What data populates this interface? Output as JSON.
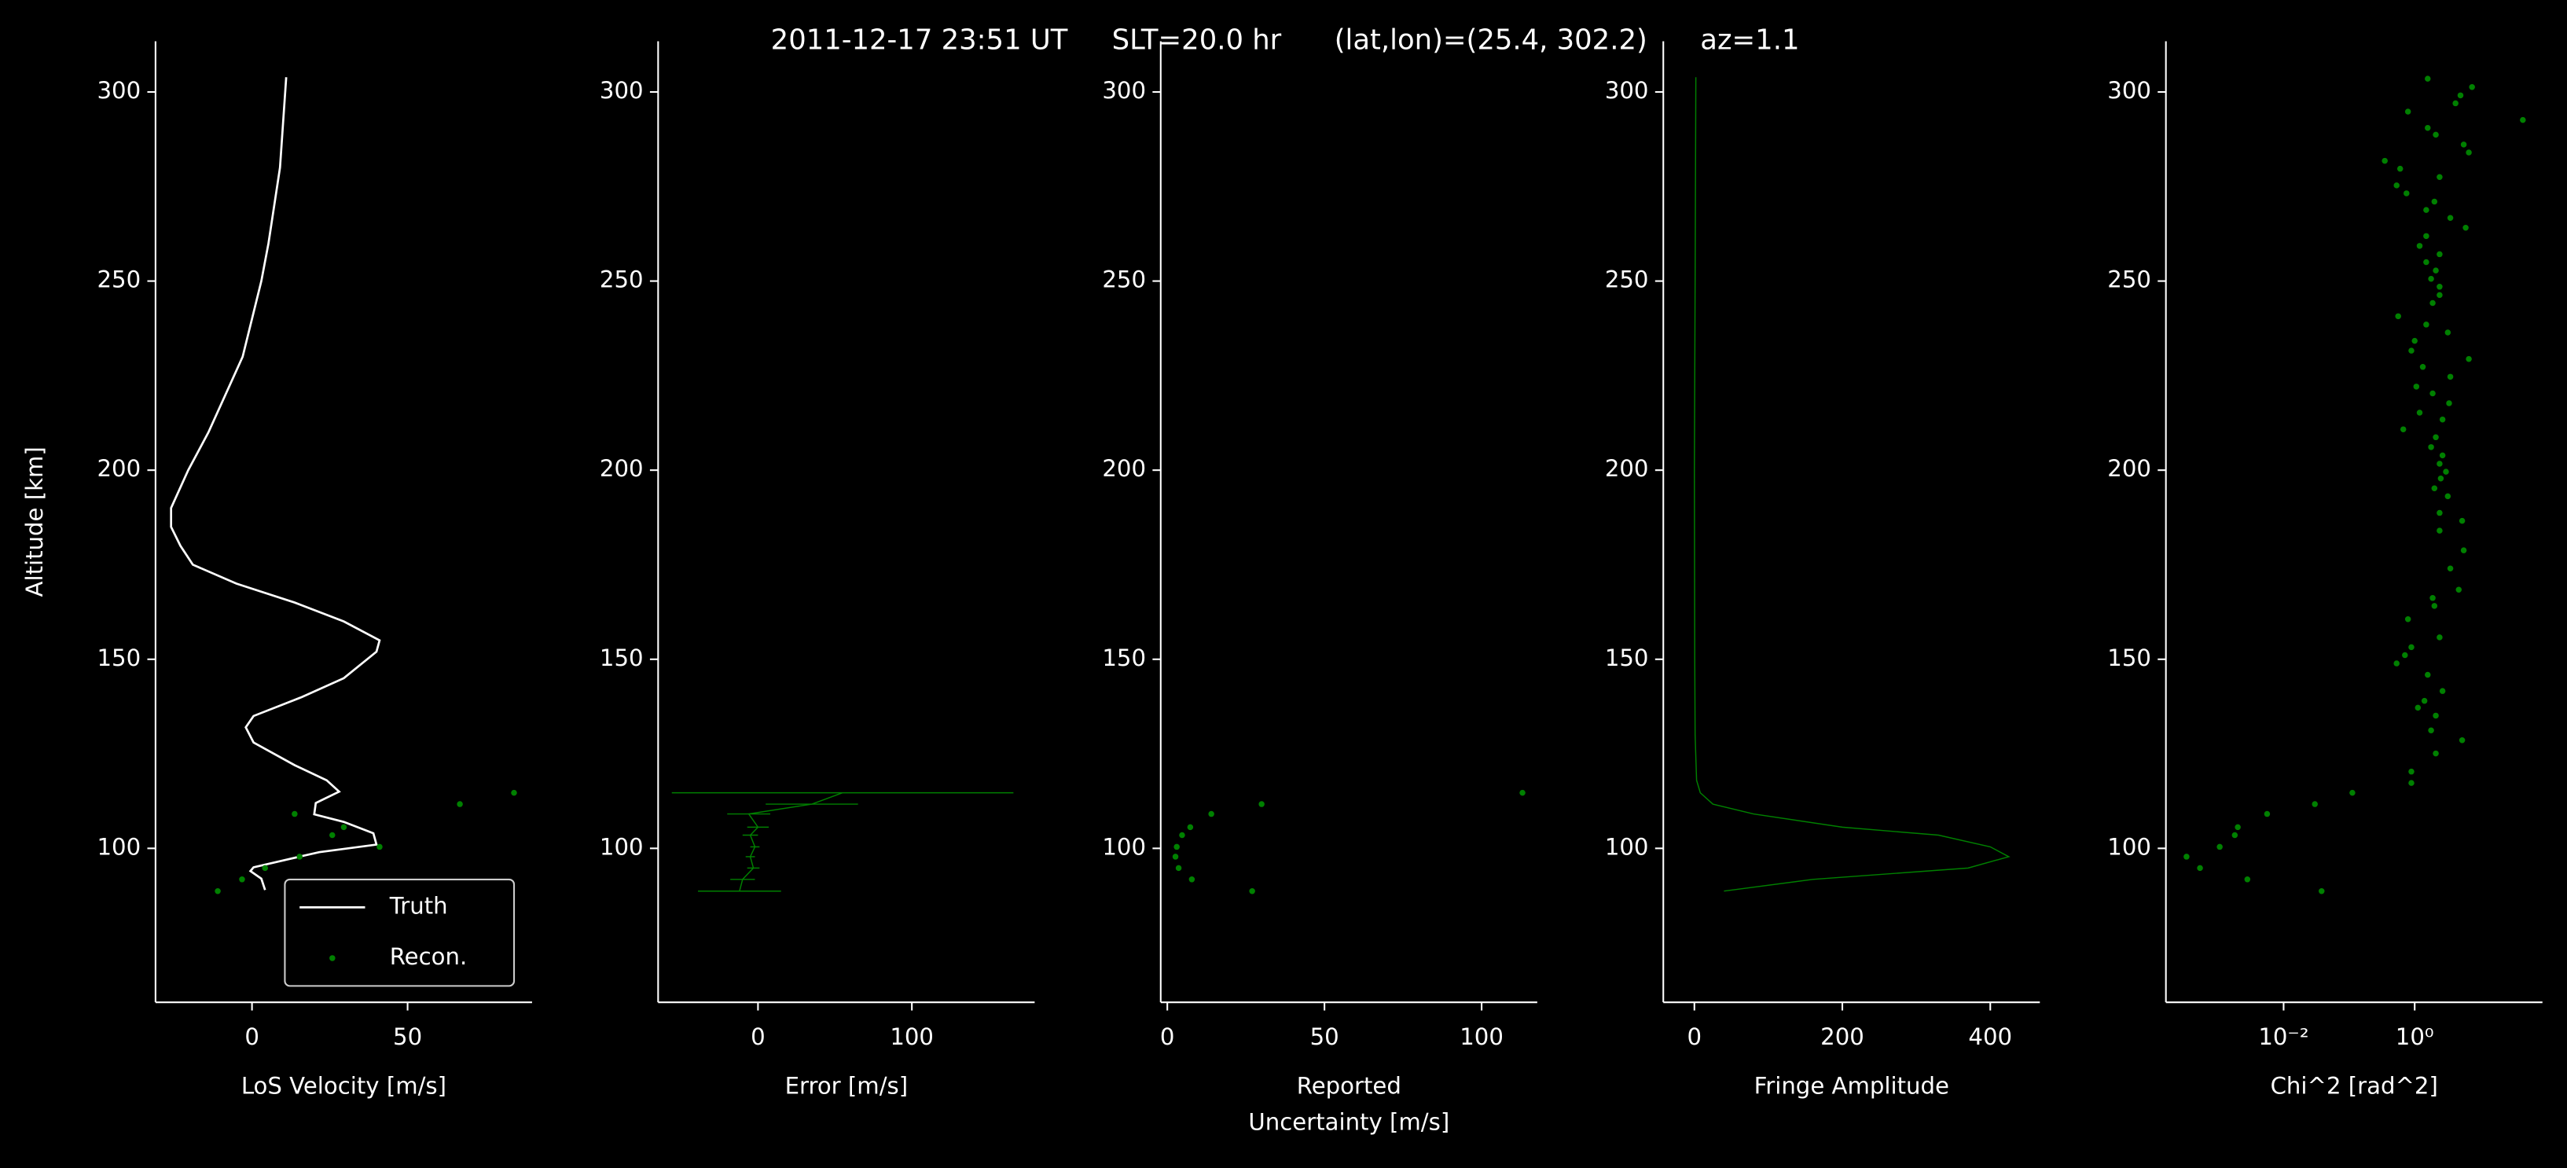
{
  "title": "2011-12-17 23:51 UT     SLT=20.0 hr      (lat,lon)=(25.4, 302.2)      az=1.1",
  "chart_data": [
    {
      "type": "line",
      "xlabel": "LoS Velocity [m/s]",
      "ylabel": "Altitude [km]",
      "xlim": [
        -31,
        90
      ],
      "xticks": [
        0,
        50
      ],
      "ylim": [
        59.3,
        313.4
      ],
      "yticks": [
        100,
        150,
        200,
        250,
        300
      ],
      "legend": "lower right",
      "series": [
        {
          "name": "Truth",
          "style": "line",
          "color": "#ffffff",
          "x": [
            11,
            9,
            5.3,
            3,
            -3,
            -14,
            -20.5,
            -26,
            -26,
            -23,
            -19,
            -5,
            13.7,
            29.5,
            41,
            40,
            29.5,
            16,
            0.5,
            -2,
            0.5,
            13.7,
            24,
            28,
            20.5,
            20,
            29.5,
            39,
            40,
            21.6,
            11,
            0.5,
            -0.5,
            3,
            4.2
          ],
          "y": [
            303.9,
            280,
            260,
            250,
            230,
            210,
            200,
            190,
            185,
            180,
            175,
            170,
            165,
            160,
            155,
            152,
            145,
            140,
            135,
            132,
            128,
            122,
            118,
            115,
            112,
            109,
            107,
            104,
            101,
            99,
            97,
            95,
            94,
            92,
            89
          ]
        },
        {
          "name": "Recon.",
          "style": "scatter",
          "color": "#008000",
          "x": [
            -11,
            -3.2,
            4.2,
            15.3,
            41,
            25.8,
            29.5,
            13.7,
            66.8,
            84.2
          ],
          "y": [
            88.7,
            91.8,
            94.8,
            97.8,
            100.4,
            103.5,
            105.6,
            109.1,
            111.7,
            114.7
          ]
        }
      ]
    },
    {
      "type": "errorbar",
      "xlabel": "Error [m/s]",
      "xlim": [
        -64.9,
        179.8
      ],
      "xticks": [
        0,
        100
      ],
      "ylim": [
        59.3,
        313.4
      ],
      "yticks": [
        100,
        150,
        200,
        250,
        300
      ],
      "series": [
        {
          "color": "#008000",
          "x": [
            -12,
            -10,
            -3,
            -5,
            -2,
            -5,
            0,
            -6,
            35,
            55
          ],
          "y": [
            88.7,
            91.8,
            94.8,
            97.8,
            100.4,
            103.5,
            105.6,
            109.1,
            111.7,
            114.7
          ],
          "xerr": [
            27,
            8,
            4,
            3,
            3,
            5,
            7,
            14,
            30,
            111
          ]
        }
      ]
    },
    {
      "type": "scatter",
      "xlabel": [
        "Reported",
        "Uncertainty [m/s]"
      ],
      "xlim": [
        -2.1,
        117.7
      ],
      "xticks": [
        0,
        50,
        100
      ],
      "ylim": [
        59.3,
        313.4
      ],
      "yticks": [
        100,
        150,
        200,
        250,
        300
      ],
      "series": [
        {
          "color": "#008000",
          "x": [
            27,
            7.8,
            3.6,
            2.6,
            3,
            4.7,
            7.3,
            14,
            30,
            113
          ],
          "y": [
            88.7,
            91.8,
            94.8,
            97.8,
            100.4,
            103.5,
            105.6,
            109.1,
            111.7,
            114.7
          ]
        }
      ]
    },
    {
      "type": "line",
      "xlabel": "Fringe Amplitude",
      "xlim": [
        -42,
        467
      ],
      "xticks": [
        0,
        200,
        400
      ],
      "ylim": [
        59.3,
        313.4
      ],
      "yticks": [
        100,
        150,
        200,
        250,
        300
      ],
      "series": [
        {
          "color": "#008000",
          "x": [
            40,
            160,
            370,
            425,
            400,
            330,
            200,
            80,
            25,
            8,
            3,
            1,
            0.5,
            0,
            1,
            2
          ],
          "y": [
            88.7,
            91.8,
            94.8,
            97.8,
            100.4,
            103.5,
            105.6,
            109.1,
            111.7,
            114.7,
            118,
            130,
            150,
            200,
            250,
            303.9
          ]
        }
      ]
    },
    {
      "type": "scatter",
      "xlabel": "Chi^2 [rad^2]",
      "xscale": "log",
      "xlim": [
        0.00016,
        89
      ],
      "xticks": [
        {
          "value": 0.01,
          "label": "10⁻²"
        },
        {
          "value": 1,
          "label": "10⁰"
        }
      ],
      "ylim": [
        59.3,
        313.4
      ],
      "yticks": [
        100,
        150,
        200,
        250,
        300
      ],
      "series": [
        {
          "color": "#008000",
          "x": [
            1.58,
            7.5,
            5.0,
            4.2,
            0.79,
            44.7,
            1.58,
            2.1,
            5.6,
            6.7,
            0.35,
            0.6,
            2.4,
            0.53,
            0.75,
            2.0,
            1.5,
            3.5,
            6.0,
            1.5,
            1.19,
            2.4,
            1.5,
            2.1,
            1.78,
            2.4,
            2.4,
            1.88,
            0.56,
            1.5,
            3.2,
            1.0,
            0.89,
            6.7,
            1.33,
            3.5,
            1.06,
            1.88,
            3.35,
            1.19,
            2.66,
            0.67,
            2.1,
            1.78,
            2.66,
            2.4,
            3.0,
            2.5,
            2.0,
            3.2,
            2.4,
            5.3,
            2.4,
            5.6,
            3.5,
            4.7,
            1.88,
            2.0,
            0.79,
            2.4,
            0.89,
            0.71,
            0.53,
            1.58,
            2.66,
            1.41,
            1.12,
            2.1,
            1.78,
            5.3,
            2.1,
            0.89,
            0.89,
            0.112,
            0.03,
            0.0056,
            0.002,
            0.0018,
            0.00106,
            0.00033,
            0.00053,
            0.0028,
            0.038
          ],
          "y": [
            303.5,
            301.3,
            299.1,
            297.0,
            294.8,
            292.6,
            290.5,
            288.7,
            286.1,
            284.0,
            281.8,
            279.7,
            277.5,
            275.3,
            273.2,
            271.0,
            268.8,
            266.7,
            264.1,
            261.9,
            259.3,
            257.1,
            255.0,
            252.8,
            250.6,
            248.5,
            246.3,
            244.2,
            240.7,
            238.5,
            236.4,
            234.2,
            231.6,
            229.4,
            227.3,
            224.7,
            222.1,
            220.3,
            217.7,
            215.2,
            213.4,
            210.8,
            208.7,
            206.1,
            203.9,
            201.7,
            199.6,
            197.8,
            195.2,
            193.1,
            188.7,
            186.6,
            184.0,
            178.8,
            174.0,
            168.4,
            166.2,
            164.1,
            160.6,
            155.8,
            153.2,
            151.1,
            148.9,
            145.9,
            141.6,
            139.0,
            137.2,
            135.1,
            131.2,
            128.6,
            125.1,
            120.3,
            117.3,
            114.7,
            111.7,
            109.1,
            105.6,
            103.5,
            100.4,
            97.8,
            94.8,
            91.8,
            88.7
          ]
        }
      ]
    }
  ]
}
